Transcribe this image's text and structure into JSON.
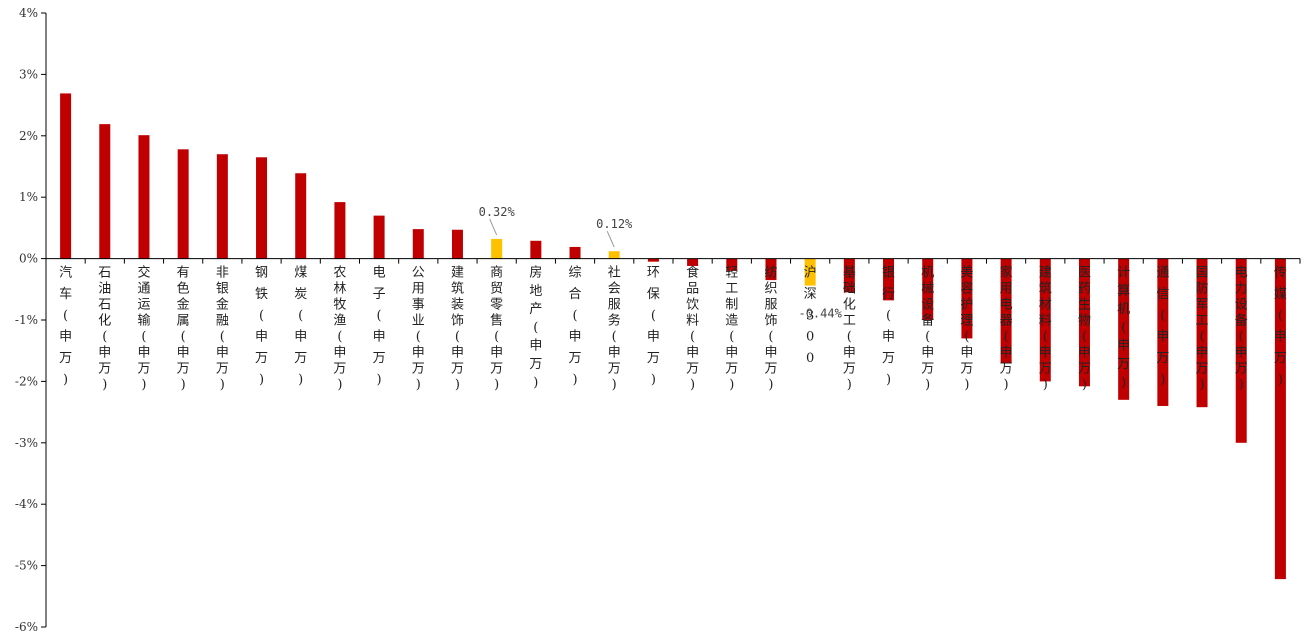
{
  "chart_data": {
    "type": "bar",
    "title": "",
    "xlabel": "",
    "ylabel": "",
    "ylim": [
      -6,
      4
    ],
    "yticks": [
      4,
      3,
      2,
      1,
      0,
      -1,
      -2,
      -3,
      -4,
      -5,
      -6
    ],
    "ytick_labels": [
      "4%",
      "3%",
      "2%",
      "1%",
      "0%",
      "-1%",
      "-2%",
      "-3%",
      "-4%",
      "-5%",
      "-6%"
    ],
    "grid": false,
    "legend": "none",
    "colors": {
      "default": "#C00000",
      "highlight": "#FFC000",
      "axis": "#000000",
      "leader": "#999999"
    },
    "categories": [
      "汽车(申万)",
      "石油石化(申万)",
      "交通运输(申万)",
      "有色金属(申万)",
      "非银金融(申万)",
      "钢铁(申万)",
      "煤炭(申万)",
      "农林牧渔(申万)",
      "电子(申万)",
      "公用事业(申万)",
      "建筑装饰(申万)",
      "商贸零售(申万)",
      "房地产(申万)",
      "综合(申万)",
      "社会服务(申万)",
      "环保(申万)",
      "食品饮料(申万)",
      "轻工制造(申万)",
      "纺织服饰(申万)",
      "沪深300",
      "基础化工(申万)",
      "银行(申万)",
      "机械设备(申万)",
      "美容护理(申万)",
      "家用电器(申万)",
      "建筑材料(申万)",
      "医药生物(申万)",
      "计算机(申万)",
      "通信(申万)",
      "国防军工(申万)",
      "电力设备(申万)",
      "传媒(申万)"
    ],
    "values": [
      2.69,
      2.19,
      2.01,
      1.78,
      1.7,
      1.65,
      1.39,
      0.92,
      0.7,
      0.48,
      0.47,
      0.32,
      0.29,
      0.19,
      0.12,
      -0.05,
      -0.12,
      -0.2,
      -0.35,
      -0.44,
      -0.55,
      -0.68,
      -1.0,
      -1.3,
      -1.7,
      -2.0,
      -2.08,
      -2.3,
      -2.4,
      -2.42,
      -3.0,
      -5.22
    ],
    "highlight_indices": [
      11,
      14,
      19
    ],
    "data_labels": [
      {
        "index": 11,
        "text": "0.32%"
      },
      {
        "index": 14,
        "text": "0.12%"
      },
      {
        "index": 19,
        "text": "-0.44%"
      }
    ]
  }
}
